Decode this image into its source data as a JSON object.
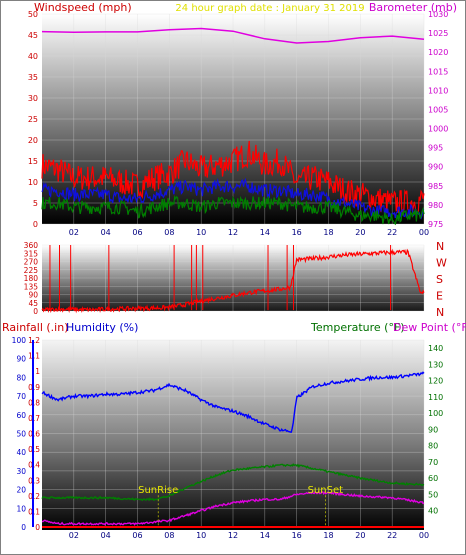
{
  "chart_data": [
    {
      "type": "line",
      "panel": "wind-barometer",
      "title": "24 hour graph date : January 31 2019",
      "ylabel_left": "Windspeed (mph)",
      "ylabel_right": "Barometer (mb)",
      "x_ticks": [
        "02",
        "04",
        "06",
        "08",
        "10",
        "12",
        "14",
        "16",
        "18",
        "20",
        "22",
        "00"
      ],
      "ylim_left": [
        0,
        50
      ],
      "yticks_left": [
        0,
        5,
        10,
        15,
        20,
        25,
        30,
        35,
        40,
        45,
        50
      ],
      "ylim_right": [
        975,
        1030
      ],
      "yticks_right": [
        975,
        980,
        985,
        990,
        995,
        1000,
        1005,
        1010,
        1015,
        1020,
        1025,
        1030
      ],
      "x_range_hours": [
        0,
        24
      ],
      "series": [
        {
          "axis": "right",
          "color": "#e000e0",
          "x": [
            0,
            2,
            4,
            6,
            8,
            10,
            12,
            14,
            16,
            18,
            20,
            22,
            24
          ],
          "y": [
            1025.4,
            1025.2,
            1025.3,
            1025.3,
            1025.9,
            1026.2,
            1025.5,
            1023.5,
            1022.4,
            1022.8,
            1023.8,
            1024.2,
            1023.4
          ]
        },
        {
          "axis": "left",
          "color": "#ff0000",
          "x": [
            0,
            1,
            2,
            3,
            4,
            5,
            6,
            7,
            8,
            9,
            10,
            11,
            12,
            13,
            14,
            15,
            16,
            17,
            18,
            19,
            20,
            21,
            22,
            23,
            24
          ],
          "y": [
            14,
            13,
            11,
            11,
            11,
            10,
            9,
            11,
            12,
            15,
            13,
            14,
            15,
            17,
            14,
            15,
            10,
            11,
            10,
            8,
            7,
            6,
            5,
            5,
            6
          ]
        },
        {
          "axis": "left",
          "color": "#1010e0",
          "x": [
            0,
            1,
            2,
            3,
            4,
            5,
            6,
            7,
            8,
            9,
            10,
            11,
            12,
            13,
            14,
            15,
            16,
            17,
            18,
            19,
            20,
            21,
            22,
            23,
            24
          ],
          "y": [
            8,
            8,
            7,
            7,
            7,
            6,
            6,
            7,
            8,
            9,
            8,
            9,
            9,
            9,
            8,
            8,
            7,
            7,
            6,
            5,
            4,
            3,
            3,
            3,
            3
          ]
        },
        {
          "axis": "left",
          "color": "#008000",
          "x": [
            0,
            1,
            2,
            3,
            4,
            5,
            6,
            7,
            8,
            9,
            10,
            11,
            12,
            13,
            14,
            15,
            16,
            17,
            18,
            19,
            20,
            21,
            22,
            23,
            24
          ],
          "y": [
            5,
            5,
            4,
            4,
            4,
            4,
            3,
            4,
            5,
            5,
            4,
            5,
            5,
            5,
            5,
            5,
            4,
            4,
            4,
            3,
            2,
            2,
            1,
            2,
            2
          ]
        }
      ]
    },
    {
      "type": "scatter",
      "panel": "wind-direction",
      "ylim": [
        0,
        360
      ],
      "yticks": [
        0,
        45,
        90,
        135,
        180,
        225,
        270,
        315,
        360
      ],
      "compass_labels": [
        "N",
        "W",
        "S",
        "E",
        "N"
      ],
      "x_ticks": [
        "02",
        "04",
        "06",
        "08",
        "10",
        "12",
        "14",
        "16",
        "18",
        "20",
        "22",
        "00"
      ],
      "x_range_hours": [
        0,
        24
      ],
      "series": [
        {
          "color": "#ff0000",
          "x": [
            0,
            1,
            2,
            3,
            4,
            5,
            6,
            7,
            8,
            9,
            10,
            11,
            12,
            13,
            14,
            15,
            15.6,
            16,
            17,
            18,
            19,
            20,
            21,
            22,
            23,
            23.8,
            24
          ],
          "y": [
            5,
            10,
            8,
            6,
            10,
            12,
            14,
            16,
            20,
            35,
            55,
            70,
            85,
            100,
            110,
            120,
            130,
            280,
            285,
            295,
            305,
            310,
            315,
            320,
            320,
            95,
            100
          ]
        }
      ]
    },
    {
      "type": "line",
      "panel": "rain-humidity-temp",
      "ylabel_left_1": "Rainfall (.in)",
      "ylabel_left_2": "Humidity (%)",
      "ylabel_right_1": "Temperature (°F)",
      "ylabel_right_2": "Dew Point (°F)",
      "annotations": [
        "SunRise",
        "SunSet"
      ],
      "annotation_hours": [
        7.3,
        17.8
      ],
      "ylim_rain": [
        0,
        1.2
      ],
      "yticks_rain": [
        0,
        0.1,
        0.2,
        0.3,
        0.4,
        0.5,
        0.6,
        0.7,
        0.8,
        0.9,
        1,
        1.1,
        1.2
      ],
      "ylim_humidity": [
        0,
        100
      ],
      "yticks_humidity": [
        0,
        10,
        20,
        30,
        40,
        50,
        60,
        70,
        80,
        90,
        100
      ],
      "ylim_temp": [
        30,
        145
      ],
      "yticks_temp": [
        40,
        50,
        60,
        70,
        80,
        90,
        100,
        110,
        120,
        130,
        140
      ],
      "x_ticks": [
        "02",
        "04",
        "06",
        "08",
        "10",
        "12",
        "14",
        "16",
        "18",
        "20",
        "22",
        "00"
      ],
      "x_range_hours": [
        0,
        24
      ],
      "series": [
        {
          "axis": "humidity",
          "color": "#0000ff",
          "x": [
            0,
            1,
            2,
            3,
            4,
            5,
            6,
            7,
            8,
            9,
            10,
            11,
            12,
            13,
            14,
            15,
            15.7,
            16,
            17,
            18,
            19,
            20,
            21,
            22,
            23,
            24
          ],
          "y": [
            72,
            68,
            70,
            70,
            71,
            71,
            72,
            73,
            76,
            73,
            68,
            64,
            62,
            59,
            55,
            52,
            51,
            69,
            75,
            77,
            78,
            79,
            80,
            80,
            81,
            82
          ]
        },
        {
          "axis": "temp",
          "color": "#008000",
          "x": [
            0,
            2,
            4,
            6,
            7,
            8,
            9,
            10,
            11,
            12,
            13,
            14,
            15,
            16,
            17,
            18,
            19,
            20,
            22,
            24
          ],
          "y": [
            48,
            48,
            48,
            47,
            47,
            49,
            54,
            58,
            62,
            65,
            66,
            67,
            68,
            68,
            66,
            64,
            62,
            60,
            57,
            56
          ]
        },
        {
          "axis": "temp",
          "color": "#e000e0",
          "x": [
            0,
            1,
            2,
            4,
            6,
            7,
            8,
            9,
            10,
            11,
            12,
            13,
            14,
            15,
            16,
            17,
            18,
            19,
            20,
            22,
            24
          ],
          "y": [
            34,
            32,
            32,
            32,
            32,
            33,
            34,
            37,
            40,
            43,
            45,
            46,
            47,
            47,
            50,
            51,
            51,
            50,
            49,
            48,
            45
          ]
        },
        {
          "axis": "rain",
          "color": "#ff0000",
          "x": [
            0,
            24
          ],
          "y": [
            0,
            0
          ]
        }
      ]
    }
  ]
}
